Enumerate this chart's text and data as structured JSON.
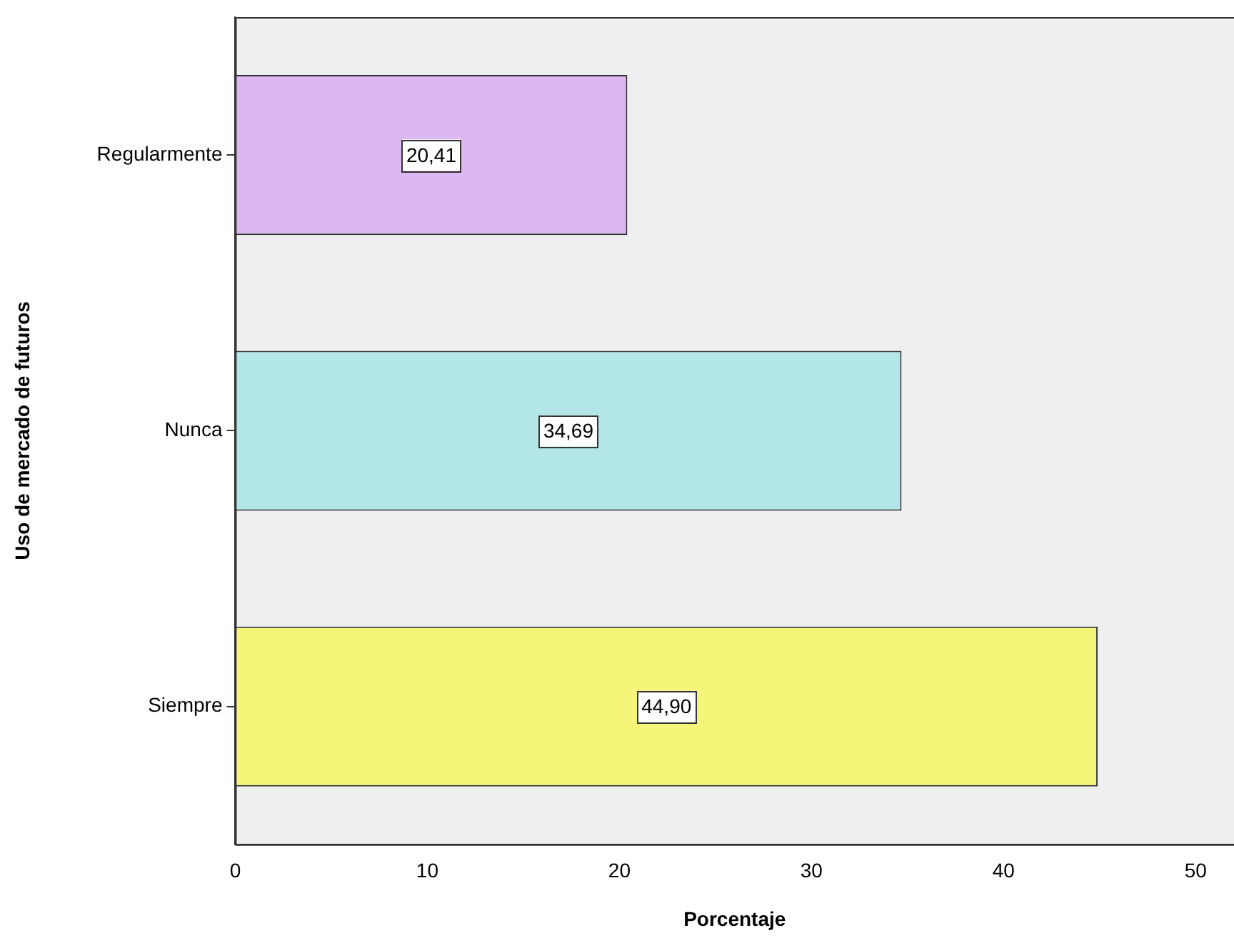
{
  "chart_data": {
    "type": "bar",
    "orientation": "horizontal",
    "xlabel": "Porcentaje",
    "ylabel": "Uso de mercado de futuros",
    "categories": [
      "Regularmente",
      "Nunca",
      "Siempre"
    ],
    "values": [
      20.41,
      34.69,
      44.9
    ],
    "value_labels": [
      "20,41",
      "34,69",
      "44,90"
    ],
    "colors": [
      "#dcb8f0",
      "#b3e6e6",
      "#f5f57a"
    ],
    "xlim": [
      0,
      52
    ],
    "xticks": [
      0,
      10,
      20,
      30,
      40,
      50
    ],
    "grid": false,
    "legend": false
  }
}
